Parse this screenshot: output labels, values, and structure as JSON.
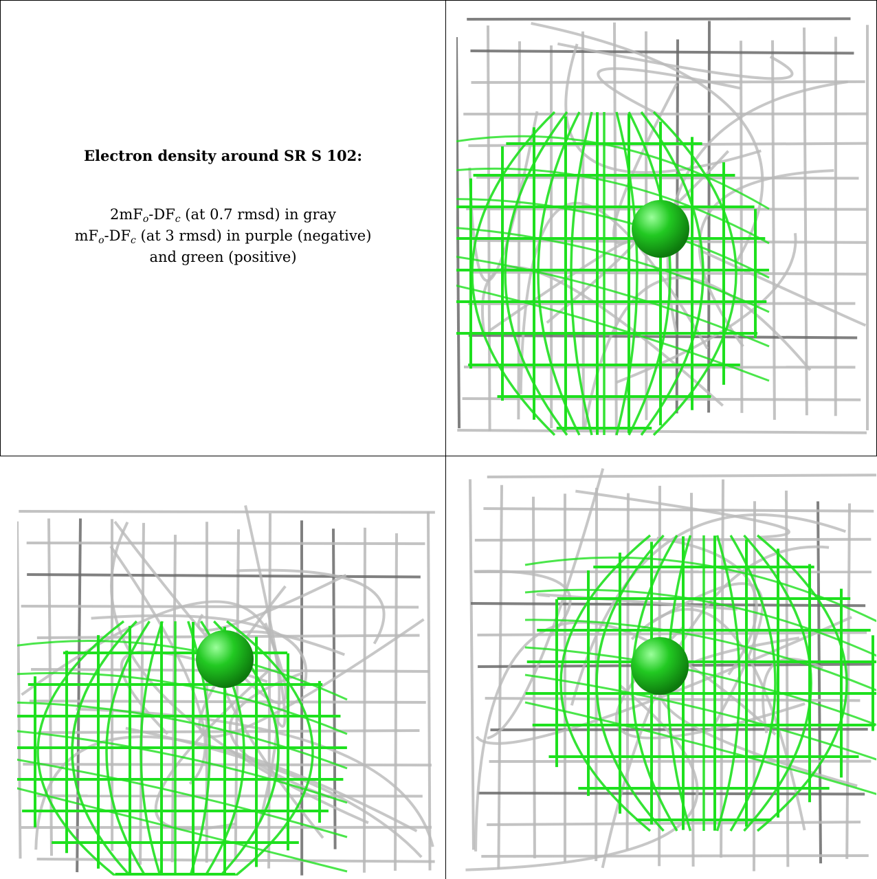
{
  "caption": {
    "title": "Electron density around SR S 102:",
    "line1": {
      "a": "2mF",
      "o": "o",
      "b": "-DF",
      "c": "c",
      "rest": " (at 0.7 rmsd) in gray"
    },
    "line2": {
      "a": "mF",
      "o": "o",
      "b": "-DF",
      "c": "c",
      "rest": " (at 3 rmsd) in purple (negative)"
    },
    "line3": "and green (positive)"
  },
  "colors": {
    "gray_mesh": "#b9b9b9",
    "gray_mesh_dark": "#6a6a6a",
    "green_mesh": "#1ee01e",
    "green_sphere": "#22c922"
  },
  "panels": [
    {
      "name": "density-panel-top-right"
    },
    {
      "name": "density-panel-bottom-left"
    },
    {
      "name": "density-panel-bottom-right"
    }
  ]
}
